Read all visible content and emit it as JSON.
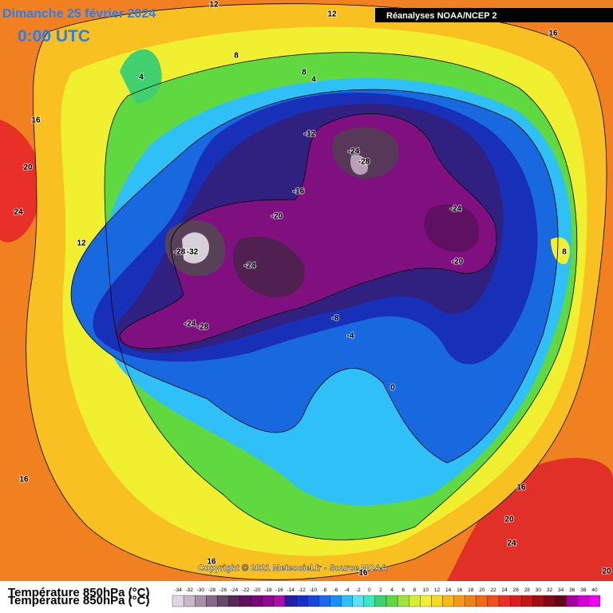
{
  "header": {
    "date": "Dimanche 25 février 2024",
    "time": "0:00 UTC",
    "source_box": "Réanalyses NOAA/NCEP 2"
  },
  "copyright": "Copyright © 2021 Meteociel.fr - Source NOAA",
  "legend": {
    "title": "Température 850hPa (°C)",
    "scale": [
      -34,
      -32,
      -30,
      -28,
      -26,
      -24,
      -22,
      -20,
      -18,
      -16,
      -14,
      -12,
      -10,
      -8,
      -6,
      -4,
      -2,
      0,
      2,
      4,
      6,
      8,
      10,
      12,
      14,
      16,
      18,
      20,
      22,
      24,
      26,
      28,
      30,
      32,
      34,
      36,
      38,
      40
    ],
    "colors": [
      "#e0d8e0",
      "#c8b8c8",
      "#a890a8",
      "#886888",
      "#684868",
      "#582858",
      "#601060",
      "#780878",
      "#900890",
      "#a810a8",
      "#2020a0",
      "#1830c0",
      "#1848d8",
      "#2068e8",
      "#1890f0",
      "#30c0f8",
      "#60e0f8",
      "#40e8c0",
      "#40d070",
      "#60d840",
      "#a0e040",
      "#d0f030",
      "#f0f030",
      "#f8d820",
      "#f8b818",
      "#f89818",
      "#f08018",
      "#f06818",
      "#f05020",
      "#e83028",
      "#d82020",
      "#c01818",
      "#a01010",
      "#800818",
      "#600818",
      "#a000a0",
      "#d000d0",
      "#f000f0"
    ]
  },
  "contour_labels": [
    "12",
    "12",
    "16",
    "8",
    "8",
    "4",
    "4",
    "16",
    "20",
    "24",
    "12",
    "-12",
    "-24",
    "-28",
    "-16",
    "-20",
    "-24",
    "-20",
    "8",
    "-28",
    "-32",
    "-24",
    "-8",
    "-24",
    "-28",
    "-4",
    "0",
    "16",
    "16",
    "20",
    "24",
    "20",
    "16",
    "16"
  ]
}
